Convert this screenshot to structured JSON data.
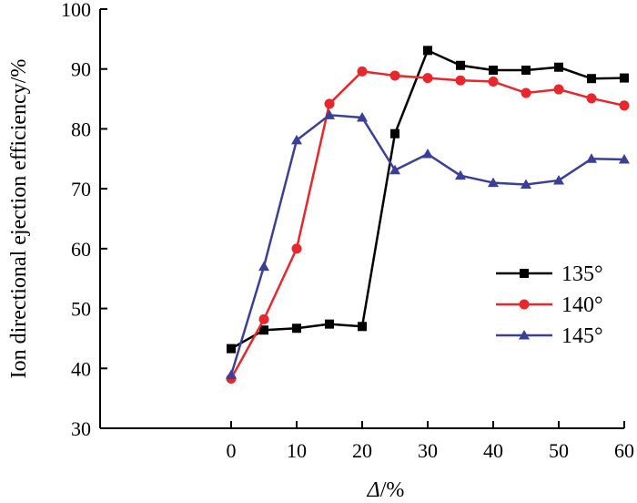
{
  "chart_data": {
    "type": "line",
    "xlabel_symbol": "Δ",
    "xlabel_unit": "/%",
    "ylabel": "Ion directional ejection efficiency/%",
    "xlim": [
      -20,
      60
    ],
    "ylim": [
      30,
      100
    ],
    "xticks": [
      0,
      10,
      20,
      30,
      40,
      50,
      60
    ],
    "yticks": [
      30,
      40,
      50,
      60,
      70,
      80,
      90,
      100
    ],
    "grid": false,
    "legend_position": "right",
    "series": [
      {
        "name": "135°",
        "color": "#000000",
        "marker": "square",
        "x": [
          0,
          5,
          10,
          15,
          20,
          25,
          30,
          35,
          40,
          45,
          50,
          55,
          60
        ],
        "y": [
          43.3,
          46.4,
          46.7,
          47.4,
          47.0,
          79.2,
          93.1,
          90.6,
          89.8,
          89.8,
          90.3,
          88.4,
          88.5
        ]
      },
      {
        "name": "140°",
        "color": "#e8262b",
        "marker": "circle",
        "x": [
          0,
          5,
          10,
          15,
          20,
          25,
          30,
          35,
          40,
          45,
          50,
          55,
          60
        ],
        "y": [
          38.3,
          48.2,
          60.0,
          84.2,
          89.6,
          88.9,
          88.5,
          88.1,
          87.9,
          86.0,
          86.6,
          85.1,
          83.9
        ]
      },
      {
        "name": "145°",
        "color": "#3a3f9a",
        "marker": "triangle",
        "x": [
          0,
          5,
          10,
          15,
          20,
          25,
          30,
          35,
          40,
          45,
          50,
          55,
          60
        ],
        "y": [
          38.9,
          57.0,
          78.1,
          82.3,
          81.9,
          73.1,
          75.8,
          72.2,
          71.0,
          70.7,
          71.4,
          75.0,
          74.9
        ]
      }
    ]
  }
}
